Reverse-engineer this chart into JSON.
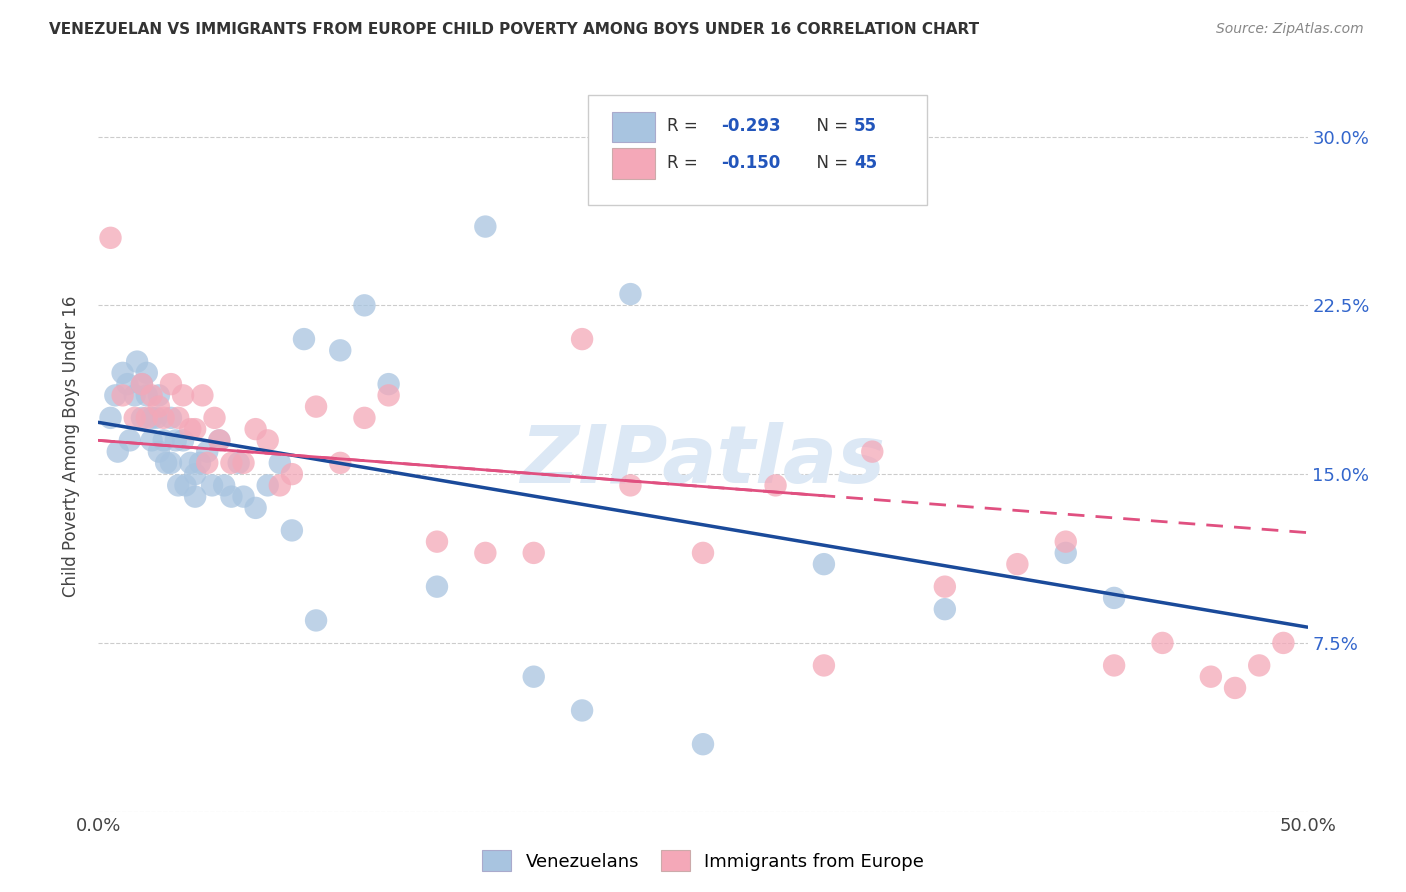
{
  "title": "VENEZUELAN VS IMMIGRANTS FROM EUROPE CHILD POVERTY AMONG BOYS UNDER 16 CORRELATION CHART",
  "source": "Source: ZipAtlas.com",
  "ylabel": "Child Poverty Among Boys Under 16",
  "xlim": [
    0.0,
    0.5
  ],
  "ylim": [
    0.0,
    0.325
  ],
  "xticks": [
    0.0,
    0.1,
    0.2,
    0.3,
    0.4,
    0.5
  ],
  "xticklabels": [
    "0.0%",
    "",
    "",
    "",
    "",
    "50.0%"
  ],
  "yticks": [
    0.075,
    0.15,
    0.225,
    0.3
  ],
  "yticklabels": [
    "7.5%",
    "15.0%",
    "22.5%",
    "30.0%"
  ],
  "background_color": "#ffffff",
  "grid_color": "#cccccc",
  "watermark_text": "ZIPatlas",
  "blue_color": "#a8c4e0",
  "pink_color": "#f4a8b8",
  "blue_line_color": "#1a4a9a",
  "pink_line_color": "#e05080",
  "venezuelan_x": [
    0.005,
    0.007,
    0.008,
    0.01,
    0.012,
    0.013,
    0.015,
    0.016,
    0.018,
    0.018,
    0.02,
    0.02,
    0.022,
    0.022,
    0.024,
    0.025,
    0.025,
    0.027,
    0.028,
    0.03,
    0.03,
    0.032,
    0.033,
    0.035,
    0.036,
    0.038,
    0.04,
    0.04,
    0.042,
    0.045,
    0.047,
    0.05,
    0.052,
    0.055,
    0.058,
    0.06,
    0.065,
    0.07,
    0.075,
    0.08,
    0.085,
    0.09,
    0.1,
    0.11,
    0.12,
    0.14,
    0.16,
    0.18,
    0.2,
    0.22,
    0.25,
    0.3,
    0.35,
    0.4,
    0.42
  ],
  "venezuelan_y": [
    0.175,
    0.185,
    0.16,
    0.195,
    0.19,
    0.165,
    0.185,
    0.2,
    0.19,
    0.175,
    0.195,
    0.185,
    0.175,
    0.165,
    0.175,
    0.185,
    0.16,
    0.165,
    0.155,
    0.175,
    0.155,
    0.165,
    0.145,
    0.165,
    0.145,
    0.155,
    0.15,
    0.14,
    0.155,
    0.16,
    0.145,
    0.165,
    0.145,
    0.14,
    0.155,
    0.14,
    0.135,
    0.145,
    0.155,
    0.125,
    0.21,
    0.085,
    0.205,
    0.225,
    0.19,
    0.1,
    0.26,
    0.06,
    0.045,
    0.23,
    0.03,
    0.11,
    0.09,
    0.115,
    0.095
  ],
  "europe_x": [
    0.005,
    0.01,
    0.015,
    0.018,
    0.02,
    0.022,
    0.025,
    0.027,
    0.03,
    0.033,
    0.035,
    0.038,
    0.04,
    0.043,
    0.045,
    0.048,
    0.05,
    0.055,
    0.06,
    0.065,
    0.07,
    0.075,
    0.08,
    0.09,
    0.1,
    0.11,
    0.12,
    0.14,
    0.16,
    0.18,
    0.2,
    0.22,
    0.25,
    0.28,
    0.3,
    0.32,
    0.35,
    0.38,
    0.4,
    0.42,
    0.44,
    0.46,
    0.47,
    0.48,
    0.49
  ],
  "europe_y": [
    0.255,
    0.185,
    0.175,
    0.19,
    0.175,
    0.185,
    0.18,
    0.175,
    0.19,
    0.175,
    0.185,
    0.17,
    0.17,
    0.185,
    0.155,
    0.175,
    0.165,
    0.155,
    0.155,
    0.17,
    0.165,
    0.145,
    0.15,
    0.18,
    0.155,
    0.175,
    0.185,
    0.12,
    0.115,
    0.115,
    0.21,
    0.145,
    0.115,
    0.145,
    0.065,
    0.16,
    0.1,
    0.11,
    0.12,
    0.065,
    0.075,
    0.06,
    0.055,
    0.065,
    0.075
  ],
  "blue_line_x0": 0.0,
  "blue_line_x1": 0.5,
  "blue_line_y0": 0.173,
  "blue_line_y1": 0.082,
  "pink_line_x0": 0.0,
  "pink_line_x1": 0.5,
  "pink_line_y0": 0.165,
  "pink_line_y1": 0.124
}
